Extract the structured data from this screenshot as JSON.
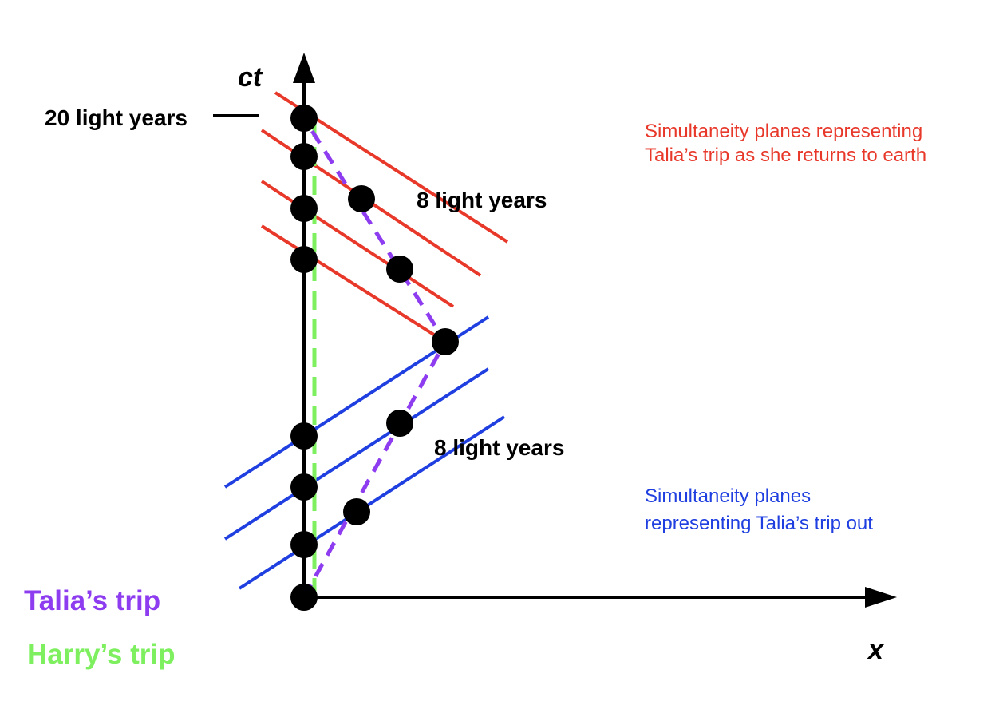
{
  "labels": {
    "ct_axis": "ct",
    "x_axis": "x",
    "twenty_ly": "20 light years",
    "eight_ly_top": "8 light years",
    "eight_ly_bottom": "8 light years",
    "legend_talia": "Talia’s trip",
    "legend_harry": "Harry’s trip",
    "return_note_line1": "Simultaneity planes representing",
    "return_note_line2": "Talia’s trip as she returns to earth",
    "out_note_line1": "Simultaneity planes",
    "out_note_line2": "representing Talia’s trip out"
  },
  "colors": {
    "axis": "#000000",
    "talia": "#8e3cf0",
    "harry": "#7ef060",
    "return_planes": "#e8382a",
    "out_planes": "#1f3fe0",
    "dots": "#000000"
  }
}
